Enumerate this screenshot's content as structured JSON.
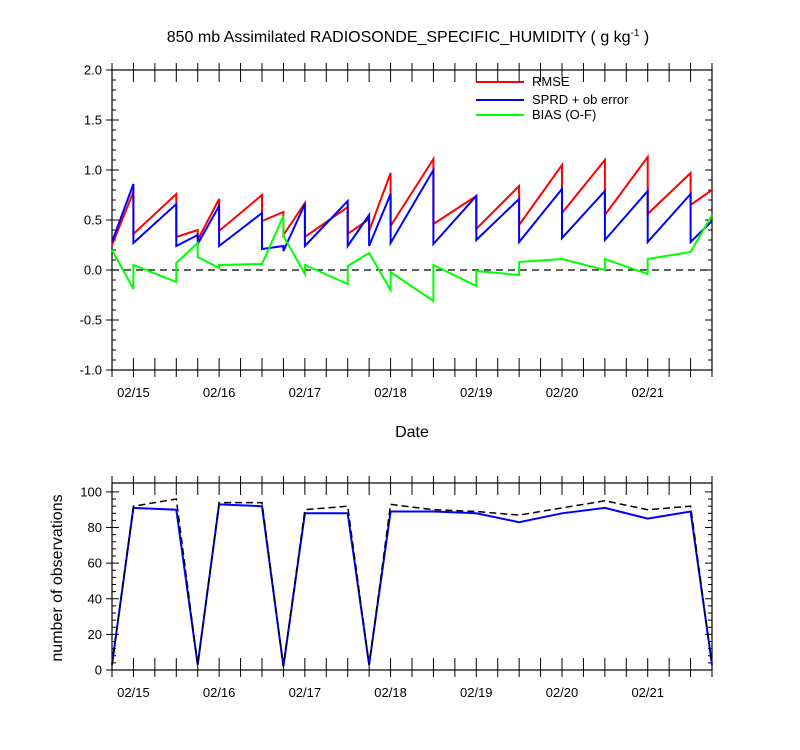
{
  "chart_data": [
    {
      "type": "line",
      "title": "850 mb Assimilated RADIOSONDE_SPECIFIC_HUMIDITY ( g kg",
      "title_sup": "-1",
      "title_end": " )",
      "xlabel": "Date",
      "ylabel": "",
      "ylim": [
        -1.0,
        2.0
      ],
      "yticks": [
        "-1.0",
        "-0.5",
        "0.0",
        "0.5",
        "1.0",
        "1.5",
        "2.0"
      ],
      "ytick_values": [
        -1.0,
        -0.5,
        0.0,
        0.5,
        1.0,
        1.5,
        2.0
      ],
      "xlim": [
        0,
        7
      ],
      "xtick_labels": [
        "02/15",
        "02/16",
        "02/17",
        "02/18",
        "02/19",
        "02/20",
        "02/21"
      ],
      "xtick_values": [
        0.25,
        1.25,
        2.25,
        3.25,
        4.25,
        5.25,
        6.25
      ],
      "zero_line": "dashed",
      "legend": {
        "placement": "top-right",
        "entries": [
          "RMSE",
          "SPRD + ob error",
          "BIAS (O-F)"
        ]
      },
      "series": [
        {
          "name": "RMSE",
          "color": "#ff0000",
          "points": [
            [
              0,
              0.25
            ],
            [
              0.25,
              0.78
            ],
            [
              0.25,
              0.36
            ],
            [
              0.75,
              0.76
            ],
            [
              0.75,
              0.33
            ],
            [
              1.0,
              0.4
            ],
            [
              1.0,
              0.3
            ],
            [
              1.25,
              0.71
            ],
            [
              1.25,
              0.39
            ],
            [
              1.75,
              0.75
            ],
            [
              1.75,
              0.49
            ],
            [
              2.0,
              0.58
            ],
            [
              2.0,
              0.35
            ],
            [
              2.25,
              0.67
            ],
            [
              2.25,
              0.33
            ],
            [
              2.75,
              0.63
            ],
            [
              2.75,
              0.36
            ],
            [
              3.0,
              0.51
            ],
            [
              3.0,
              0.39
            ],
            [
              3.25,
              0.97
            ],
            [
              3.25,
              0.44
            ],
            [
              3.75,
              1.11
            ],
            [
              3.75,
              0.46
            ],
            [
              4.25,
              0.74
            ],
            [
              4.25,
              0.41
            ],
            [
              4.75,
              0.84
            ],
            [
              4.75,
              0.45
            ],
            [
              5.25,
              1.05
            ],
            [
              5.25,
              0.57
            ],
            [
              5.75,
              1.1
            ],
            [
              5.75,
              0.55
            ],
            [
              6.25,
              1.13
            ],
            [
              6.25,
              0.56
            ],
            [
              6.75,
              0.97
            ],
            [
              6.75,
              0.65
            ],
            [
              7.0,
              0.8
            ]
          ]
        },
        {
          "name": "SPRD + ob error",
          "color": "#0000ff",
          "points": [
            [
              0,
              0.28
            ],
            [
              0.25,
              0.86
            ],
            [
              0.25,
              0.27
            ],
            [
              0.75,
              0.66
            ],
            [
              0.75,
              0.24
            ],
            [
              1.0,
              0.35
            ],
            [
              1.0,
              0.26
            ],
            [
              1.25,
              0.64
            ],
            [
              1.25,
              0.24
            ],
            [
              1.75,
              0.57
            ],
            [
              1.75,
              0.21
            ],
            [
              2.0,
              0.24
            ],
            [
              2.0,
              0.19
            ],
            [
              2.25,
              0.66
            ],
            [
              2.25,
              0.24
            ],
            [
              2.75,
              0.69
            ],
            [
              2.75,
              0.24
            ],
            [
              3.0,
              0.55
            ],
            [
              3.0,
              0.24
            ],
            [
              3.25,
              0.76
            ],
            [
              3.25,
              0.27
            ],
            [
              3.75,
              1.0
            ],
            [
              3.75,
              0.26
            ],
            [
              4.25,
              0.74
            ],
            [
              4.25,
              0.3
            ],
            [
              4.75,
              0.71
            ],
            [
              4.75,
              0.28
            ],
            [
              5.25,
              0.81
            ],
            [
              5.25,
              0.32
            ],
            [
              5.75,
              0.79
            ],
            [
              5.75,
              0.3
            ],
            [
              6.25,
              0.79
            ],
            [
              6.25,
              0.28
            ],
            [
              6.75,
              0.76
            ],
            [
              6.75,
              0.28
            ],
            [
              7.0,
              0.49
            ]
          ]
        },
        {
          "name": "BIAS (O-F)",
          "color": "#00ff00",
          "points": [
            [
              0,
              0.2
            ],
            [
              0.25,
              -0.19
            ],
            [
              0.25,
              0.05
            ],
            [
              0.75,
              -0.12
            ],
            [
              0.75,
              0.07
            ],
            [
              1.0,
              0.27
            ],
            [
              1.0,
              0.13
            ],
            [
              1.25,
              0.02
            ],
            [
              1.25,
              0.05
            ],
            [
              1.75,
              0.06
            ],
            [
              2.0,
              0.54
            ],
            [
              2.0,
              0.34
            ],
            [
              2.25,
              -0.04
            ],
            [
              2.25,
              0.05
            ],
            [
              2.75,
              -0.14
            ],
            [
              2.75,
              0.04
            ],
            [
              3.0,
              0.17
            ],
            [
              3.25,
              -0.2
            ],
            [
              3.25,
              -0.02
            ],
            [
              3.75,
              -0.31
            ],
            [
              3.75,
              0.05
            ],
            [
              4.25,
              -0.16
            ],
            [
              4.25,
              -0.01
            ],
            [
              4.75,
              -0.05
            ],
            [
              4.75,
              0.08
            ],
            [
              5.25,
              0.11
            ],
            [
              5.75,
              0.0
            ],
            [
              5.75,
              0.11
            ],
            [
              6.25,
              -0.04
            ],
            [
              6.25,
              0.11
            ],
            [
              6.75,
              0.18
            ],
            [
              7.0,
              0.55
            ]
          ]
        }
      ]
    },
    {
      "type": "line",
      "title": "",
      "xlabel": "",
      "ylabel": "number of observations",
      "ylim": [
        0,
        105
      ],
      "yticks": [
        "0",
        "20",
        "40",
        "60",
        "80",
        "100"
      ],
      "ytick_values": [
        0,
        20,
        40,
        60,
        80,
        100
      ],
      "xlim": [
        0,
        7
      ],
      "xtick_labels": [
        "02/15",
        "02/16",
        "02/17",
        "02/18",
        "02/19",
        "02/20",
        "02/21"
      ],
      "xtick_values": [
        0.25,
        1.25,
        2.25,
        3.25,
        4.25,
        5.25,
        6.25
      ],
      "series": [
        {
          "color": "#0000ff",
          "style": "solid",
          "points": [
            [
              0,
              3
            ],
            [
              0.25,
              91
            ],
            [
              0.75,
              90
            ],
            [
              1.0,
              3
            ],
            [
              1.25,
              93
            ],
            [
              1.75,
              92
            ],
            [
              2.0,
              2
            ],
            [
              2.25,
              88
            ],
            [
              2.75,
              88
            ],
            [
              3.0,
              3
            ],
            [
              3.25,
              89
            ],
            [
              3.75,
              89
            ],
            [
              4.25,
              88
            ],
            [
              4.75,
              83
            ],
            [
              5.25,
              88
            ],
            [
              5.75,
              91
            ],
            [
              6.25,
              85
            ],
            [
              6.75,
              89
            ],
            [
              7.0,
              3
            ]
          ]
        },
        {
          "color": "#000000",
          "style": "dashed",
          "points": [
            [
              0,
              3
            ],
            [
              0.25,
              92
            ],
            [
              0.75,
              96
            ],
            [
              1.0,
              3
            ],
            [
              1.25,
              94
            ],
            [
              1.75,
              94
            ],
            [
              2.0,
              2
            ],
            [
              2.25,
              90
            ],
            [
              2.75,
              92
            ],
            [
              3.0,
              3
            ],
            [
              3.25,
              93
            ],
            [
              3.75,
              90
            ],
            [
              4.25,
              89
            ],
            [
              4.75,
              87
            ],
            [
              5.25,
              91
            ],
            [
              5.75,
              95
            ],
            [
              6.25,
              90
            ],
            [
              6.75,
              92
            ],
            [
              7.0,
              3
            ]
          ]
        }
      ]
    }
  ]
}
